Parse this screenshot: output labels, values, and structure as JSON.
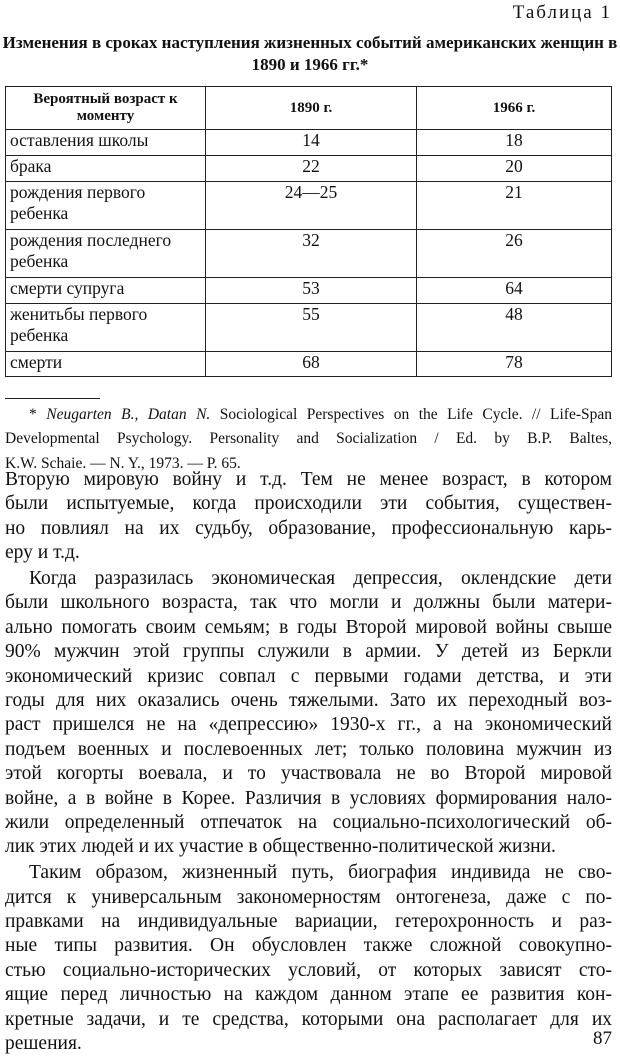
{
  "table": {
    "label": "Таблица 1",
    "title": "Изменения в сроках наступления жизненных событий американских женщин в 1890 и 1966 гг.*",
    "headers": [
      "Вероятный возраст к моменту",
      "1890 г.",
      "1966 г."
    ],
    "rows": [
      [
        "оставления школы",
        "14",
        "18"
      ],
      [
        "брака",
        "22",
        "20"
      ],
      [
        "рождения первого ребенка",
        "24—25",
        "21"
      ],
      [
        "рождения последнего ребенка",
        "32",
        "26"
      ],
      [
        "смерти супруга",
        "53",
        "64"
      ],
      [
        "женитьбы первого ребенка",
        "55",
        "48"
      ],
      [
        "смерти",
        "68",
        "78"
      ]
    ]
  },
  "footnote": {
    "authors": "Neugarten B., Datan N.",
    "lines": [
      "Sociological Perspectives on the Life Cycle. // Life-Span",
      "Developmental Psychology. Personality and Socialization / Ed. by B.P. Baltes,",
      "K.W. Schaie. — N. Y., 1973. — P. 65."
    ]
  },
  "body": {
    "paragraphs": [
      {
        "indent": false,
        "lines": [
          "Вторую мировую войну и т.д. Тем не менее возраст, в котором",
          "были испытуемые, когда происходили эти события, существен-",
          "но повлиял на их судьбу, образование, профессиональную карь-",
          "еру и т.д."
        ]
      },
      {
        "indent": true,
        "lines": [
          "Когда разразилась экономическая депрессия, оклендские дети",
          "были школьного возраста, так что могли и должны были матери-",
          "ально помогать своим семьям; в годы Второй мировой войны свыше",
          "90% мужчин этой группы служили в армии. У детей из Беркли",
          "экономический кризис совпал с первыми годами детства, и эти",
          "годы для них оказались очень тяжелыми. Зато их переходный воз-",
          "раст пришелся не на «депрессию» 1930-х гг., а на экономический",
          "подъем военных и послевоенных лет; только половина мужчин из",
          "этой когорты воевала, и то участвовала не во Второй мировой",
          "войне, а в войне в Корее. Различия в условиях формирования нало-",
          "жили определенный отпечаток на социально-психологический об-",
          "лик этих людей и их участие в общественно-политической жизни."
        ]
      },
      {
        "indent": true,
        "lines": [
          "Таким образом, жизненный путь, биография индивида не сво-",
          "дится к универсальным закономерностям онтогенеза, даже с по-",
          "правками на индивидуальные вариации, гетерохронность и раз-",
          "ные типы развития. Он обусловлен также сложной совокупно-",
          "стью социально-исторических условий, от которых зависят сто-",
          "ящие перед личностью на каждом данном этапе ее развития кон-",
          "кретные задачи, и те средства, которыми она располагает для их",
          "решения."
        ]
      }
    ]
  },
  "page_number": "87"
}
